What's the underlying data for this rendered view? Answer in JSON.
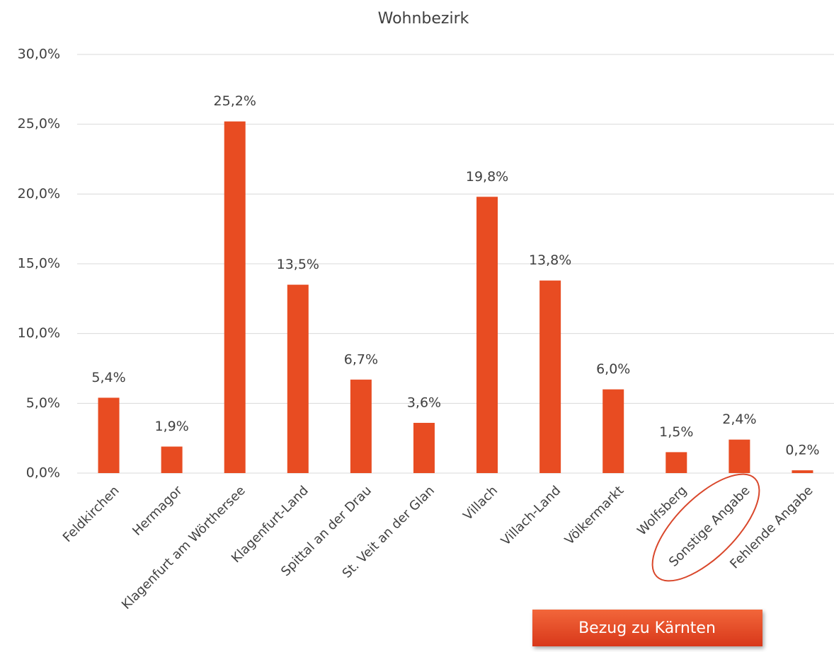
{
  "chart_data": {
    "type": "bar",
    "title": "Wohnbezirk",
    "categories": [
      "Feldkirchen",
      "Hermagor",
      "Klagenfurt am Wörthersee",
      "Klagenfurt-Land",
      "Spittal an der Drau",
      "St. Veit an der Glan",
      "Villach",
      "Villach-Land",
      "Völkermarkt",
      "Wolfsberg",
      "Sonstige Angabe",
      "Fehlende Angabe"
    ],
    "values": [
      5.4,
      1.9,
      25.2,
      13.5,
      6.7,
      3.6,
      19.8,
      13.8,
      6.0,
      1.5,
      2.4,
      0.2
    ],
    "value_labels": [
      "5,4%",
      "1,9%",
      "25,2%",
      "13,5%",
      "6,7%",
      "3,6%",
      "19,8%",
      "13,8%",
      "6,0%",
      "1,5%",
      "2,4%",
      "0,2%"
    ],
    "color": "#e84c22",
    "ylim": [
      0,
      30
    ],
    "yticks": [
      {
        "value": 0,
        "label": "0,0%"
      },
      {
        "value": 5,
        "label": "5,0%"
      },
      {
        "value": 10,
        "label": "10,0%"
      },
      {
        "value": 15,
        "label": "15,0%"
      },
      {
        "value": 20,
        "label": "20,0%"
      },
      {
        "value": 25,
        "label": "25,0%"
      },
      {
        "value": 30,
        "label": "30,0%"
      }
    ],
    "grid": true,
    "annotation": "Bezug zu Kärnten"
  }
}
